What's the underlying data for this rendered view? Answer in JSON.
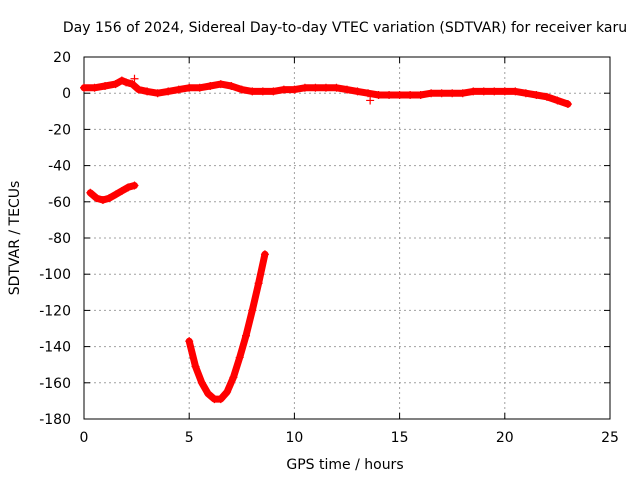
{
  "chart_data": {
    "type": "scatter",
    "title": "Day 156 of 2024, Sidereal Day-to-day VTEC variation (SDTVAR) for receiver karu",
    "xlabel": "GPS time / hours",
    "ylabel": "SDTVAR / TECUs",
    "xlim": [
      0,
      25
    ],
    "ylim": [
      -180,
      20
    ],
    "xticks": [
      0,
      5,
      10,
      15,
      20,
      25
    ],
    "yticks": [
      20,
      0,
      -20,
      -40,
      -60,
      -80,
      -100,
      -120,
      -140,
      -160,
      -180
    ],
    "grid": true,
    "series": [
      {
        "name": "main-track",
        "color": "#ff0000",
        "marker": "plus",
        "x": [
          0.0,
          0.5,
          1.0,
          1.5,
          1.8,
          2.0,
          2.3,
          2.6,
          3.0,
          3.5,
          4.0,
          4.5,
          5.0,
          5.5,
          6.0,
          6.5,
          7.0,
          7.5,
          8.0,
          8.5,
          9.0,
          9.5,
          10.0,
          10.5,
          11.0,
          11.5,
          12.0,
          12.5,
          13.0,
          13.5,
          14.0,
          14.5,
          15.0,
          15.5,
          16.0,
          16.5,
          17.0,
          17.5,
          18.0,
          18.5,
          19.0,
          19.5,
          20.0,
          20.5,
          21.0,
          21.5,
          22.0,
          22.5,
          23.0
        ],
        "y": [
          3,
          3,
          4,
          5,
          7,
          6,
          5,
          2,
          1,
          0,
          1,
          2,
          3,
          3,
          4,
          5,
          4,
          2,
          1,
          1,
          1,
          2,
          2,
          3,
          3,
          3,
          3,
          2,
          1,
          0,
          -1,
          -1,
          -1,
          -1,
          -1,
          0,
          0,
          0,
          0,
          1,
          1,
          1,
          1,
          1,
          0,
          -1,
          -2,
          -4,
          -6
        ]
      },
      {
        "name": "early-arc",
        "color": "#ff0000",
        "marker": "plus",
        "x": [
          0.3,
          0.6,
          0.9,
          1.2,
          1.5,
          1.8,
          2.1,
          2.4
        ],
        "y": [
          -55,
          -58,
          -59,
          -58,
          -56,
          -54,
          -52,
          -51
        ]
      },
      {
        "name": "deep-dip",
        "color": "#ff0000",
        "marker": "plus",
        "x": [
          5.0,
          5.3,
          5.6,
          5.9,
          6.2,
          6.5,
          6.8,
          7.1,
          7.4,
          7.7,
          8.0,
          8.3,
          8.6
        ],
        "y": [
          -137,
          -151,
          -160,
          -166,
          -169,
          -169,
          -165,
          -157,
          -146,
          -134,
          -120,
          -105,
          -89
        ]
      },
      {
        "name": "outliers",
        "color": "#ff0000",
        "marker": "plus",
        "x": [
          2.4,
          13.6
        ],
        "y": [
          8,
          -4
        ]
      }
    ]
  }
}
